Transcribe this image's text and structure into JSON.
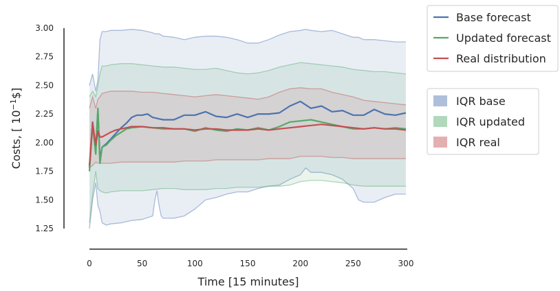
{
  "chart_data": {
    "type": "line",
    "xlabel": "Time [15 minutes]",
    "ylabel": "Costs, [ 10",
    "ylabel_sup": "−1",
    "ylabel_tail": "$]",
    "xlim": [
      0,
      300
    ],
    "ylim": [
      1.25,
      3.0
    ],
    "x_ticks": [
      "0",
      "50",
      "100",
      "150",
      "200",
      "250",
      "300"
    ],
    "y_ticks": [
      "1.25",
      "1.50",
      "1.75",
      "2.00",
      "2.25",
      "2.50",
      "2.75",
      "3.00"
    ],
    "grid": false,
    "legend_placement": "outside-right",
    "series": [
      {
        "name": "Base forecast",
        "color": "#4c72b0",
        "x": [
          0,
          3,
          6,
          8,
          10,
          12,
          16,
          20,
          25,
          30,
          35,
          40,
          45,
          50,
          55,
          60,
          65,
          70,
          80,
          90,
          100,
          110,
          120,
          130,
          140,
          150,
          160,
          170,
          180,
          190,
          200,
          210,
          220,
          230,
          240,
          250,
          260,
          270,
          280,
          290,
          300
        ],
        "y": [
          1.78,
          2.18,
          1.95,
          2.28,
          1.85,
          1.96,
          1.99,
          2.03,
          2.08,
          2.13,
          2.17,
          2.22,
          2.24,
          2.24,
          2.25,
          2.22,
          2.21,
          2.2,
          2.2,
          2.24,
          2.24,
          2.27,
          2.23,
          2.22,
          2.25,
          2.22,
          2.25,
          2.25,
          2.26,
          2.32,
          2.36,
          2.3,
          2.32,
          2.27,
          2.28,
          2.24,
          2.24,
          2.29,
          2.25,
          2.24,
          2.26
        ]
      },
      {
        "name": "Updated forecast",
        "color": "#55a868",
        "x": [
          0,
          3,
          6,
          8,
          10,
          12,
          16,
          20,
          25,
          30,
          35,
          40,
          50,
          60,
          70,
          80,
          90,
          100,
          110,
          120,
          130,
          140,
          150,
          160,
          170,
          180,
          190,
          200,
          210,
          220,
          230,
          240,
          250,
          260,
          270,
          280,
          290,
          300
        ],
        "y": [
          1.75,
          2.15,
          1.9,
          2.3,
          1.82,
          1.96,
          1.98,
          2.02,
          2.06,
          2.09,
          2.12,
          2.13,
          2.14,
          2.13,
          2.12,
          2.12,
          2.12,
          2.1,
          2.13,
          2.11,
          2.1,
          2.12,
          2.11,
          2.13,
          2.11,
          2.14,
          2.18,
          2.19,
          2.2,
          2.18,
          2.16,
          2.14,
          2.12,
          2.12,
          2.13,
          2.12,
          2.13,
          2.12
        ]
      },
      {
        "name": "Real distribution",
        "color": "#c44e52",
        "x": [
          0,
          3,
          6,
          8,
          10,
          12,
          16,
          20,
          25,
          30,
          35,
          40,
          50,
          60,
          70,
          80,
          90,
          100,
          110,
          120,
          130,
          140,
          150,
          160,
          170,
          180,
          190,
          200,
          210,
          220,
          230,
          240,
          250,
          260,
          270,
          280,
          290,
          300
        ],
        "y": [
          1.8,
          2.17,
          1.98,
          2.1,
          2.05,
          2.05,
          2.07,
          2.09,
          2.11,
          2.12,
          2.13,
          2.14,
          2.14,
          2.13,
          2.13,
          2.12,
          2.12,
          2.11,
          2.12,
          2.12,
          2.11,
          2.11,
          2.11,
          2.12,
          2.11,
          2.12,
          2.13,
          2.14,
          2.15,
          2.16,
          2.15,
          2.14,
          2.13,
          2.12,
          2.13,
          2.12,
          2.12,
          2.11
        ]
      }
    ],
    "bands": [
      {
        "name": "IQR base",
        "color": "#4c72b0",
        "x": [
          0,
          3,
          6,
          8,
          10,
          12,
          16,
          20,
          30,
          40,
          50,
          60,
          62,
          64,
          66,
          68,
          70,
          80,
          90,
          100,
          110,
          120,
          130,
          140,
          150,
          160,
          170,
          180,
          190,
          200,
          205,
          210,
          220,
          230,
          240,
          250,
          255,
          260,
          270,
          280,
          290,
          300
        ],
        "lower": [
          1.25,
          1.5,
          1.65,
          1.45,
          1.4,
          1.3,
          1.28,
          1.29,
          1.3,
          1.32,
          1.33,
          1.36,
          1.5,
          1.58,
          1.45,
          1.36,
          1.34,
          1.34,
          1.36,
          1.42,
          1.5,
          1.52,
          1.55,
          1.57,
          1.57,
          1.6,
          1.62,
          1.63,
          1.68,
          1.72,
          1.78,
          1.74,
          1.74,
          1.72,
          1.68,
          1.6,
          1.5,
          1.48,
          1.48,
          1.52,
          1.55,
          1.55
        ],
        "upper": [
          2.5,
          2.6,
          2.45,
          2.55,
          2.9,
          2.97,
          2.97,
          2.98,
          2.98,
          2.99,
          2.98,
          2.96,
          2.95,
          2.95,
          2.95,
          2.94,
          2.93,
          2.92,
          2.9,
          2.92,
          2.93,
          2.93,
          2.92,
          2.9,
          2.87,
          2.87,
          2.9,
          2.94,
          2.97,
          2.98,
          2.99,
          2.98,
          2.97,
          2.98,
          2.95,
          2.92,
          2.92,
          2.9,
          2.9,
          2.89,
          2.88,
          2.88
        ]
      },
      {
        "name": "IQR updated",
        "color": "#55a868",
        "x": [
          0,
          3,
          6,
          8,
          10,
          12,
          16,
          20,
          30,
          40,
          50,
          60,
          70,
          80,
          90,
          100,
          110,
          120,
          130,
          140,
          150,
          160,
          170,
          180,
          190,
          200,
          210,
          220,
          230,
          240,
          250,
          260,
          270,
          280,
          290,
          300
        ],
        "lower": [
          1.3,
          1.55,
          1.75,
          1.6,
          1.58,
          1.57,
          1.56,
          1.57,
          1.58,
          1.58,
          1.58,
          1.59,
          1.6,
          1.6,
          1.59,
          1.59,
          1.59,
          1.6,
          1.6,
          1.61,
          1.61,
          1.61,
          1.62,
          1.62,
          1.63,
          1.66,
          1.67,
          1.67,
          1.66,
          1.65,
          1.63,
          1.62,
          1.62,
          1.62,
          1.62,
          1.62
        ],
        "upper": [
          2.4,
          2.45,
          2.4,
          2.5,
          2.6,
          2.67,
          2.67,
          2.68,
          2.69,
          2.69,
          2.68,
          2.67,
          2.66,
          2.66,
          2.65,
          2.64,
          2.64,
          2.65,
          2.63,
          2.61,
          2.6,
          2.61,
          2.63,
          2.66,
          2.68,
          2.7,
          2.69,
          2.68,
          2.67,
          2.66,
          2.64,
          2.63,
          2.62,
          2.62,
          2.61,
          2.6
        ]
      },
      {
        "name": "IQR real",
        "color": "#c44e52",
        "x": [
          0,
          3,
          6,
          8,
          10,
          12,
          16,
          20,
          30,
          40,
          50,
          60,
          70,
          80,
          90,
          100,
          110,
          120,
          130,
          140,
          150,
          160,
          170,
          180,
          190,
          200,
          210,
          220,
          230,
          240,
          250,
          260,
          270,
          280,
          290,
          300
        ],
        "lower": [
          1.78,
          1.8,
          1.83,
          1.82,
          1.82,
          1.82,
          1.82,
          1.82,
          1.83,
          1.83,
          1.83,
          1.83,
          1.83,
          1.83,
          1.84,
          1.84,
          1.84,
          1.85,
          1.85,
          1.85,
          1.85,
          1.85,
          1.86,
          1.86,
          1.86,
          1.88,
          1.88,
          1.88,
          1.87,
          1.87,
          1.86,
          1.86,
          1.86,
          1.86,
          1.86,
          1.86
        ],
        "upper": [
          2.3,
          2.4,
          2.3,
          2.38,
          2.4,
          2.43,
          2.44,
          2.45,
          2.45,
          2.45,
          2.44,
          2.44,
          2.43,
          2.42,
          2.41,
          2.4,
          2.41,
          2.42,
          2.41,
          2.4,
          2.39,
          2.38,
          2.4,
          2.44,
          2.47,
          2.48,
          2.47,
          2.47,
          2.44,
          2.42,
          2.4,
          2.37,
          2.36,
          2.35,
          2.34,
          2.33
        ]
      }
    ],
    "line_legend": [
      "Base forecast",
      "Updated forecast",
      "Real distribution"
    ],
    "band_legend": [
      "IQR base",
      "IQR updated",
      "IQR real"
    ]
  }
}
